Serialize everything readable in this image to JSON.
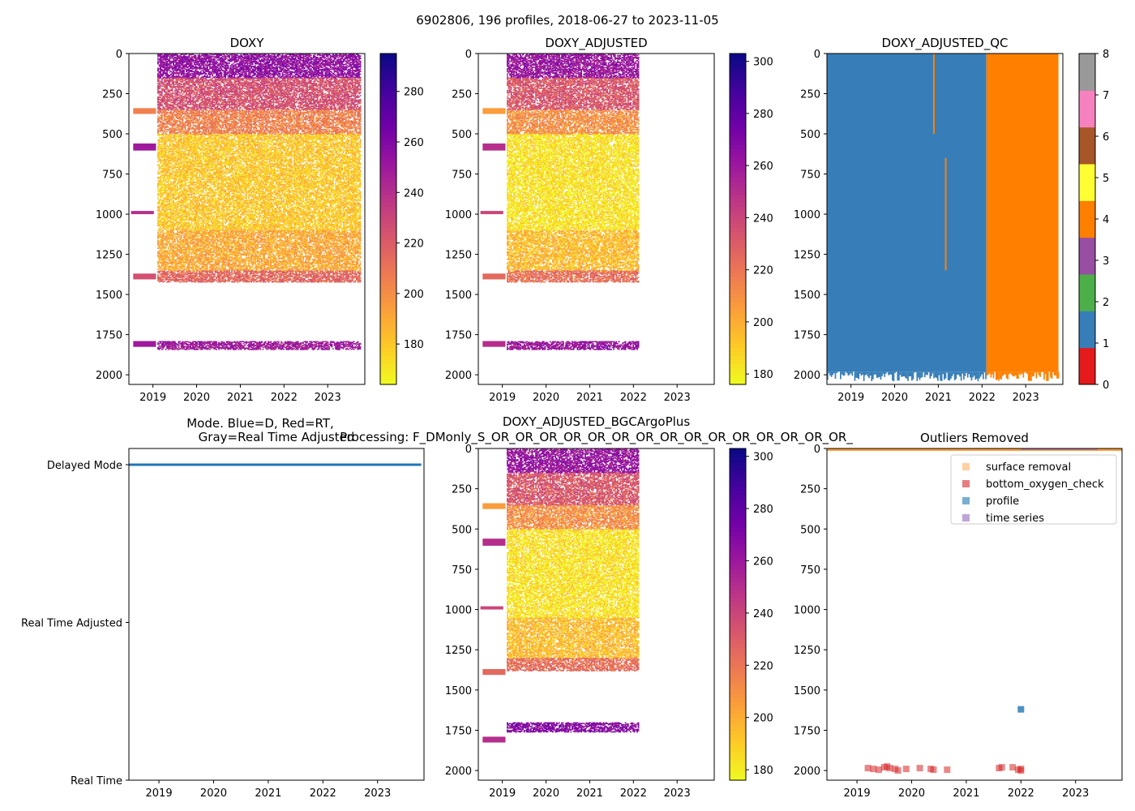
{
  "figure": {
    "suptitle": "6902806, 196 profiles, 2018-06-27 to 2023-11-05"
  },
  "colors": {
    "plasma_low": "#f0f921",
    "plasma_mid": "#e16462",
    "plasma_high": "#0d0887",
    "qc_1": "#377eb8",
    "qc_4": "#ff7f00",
    "mode_line": "#1f77b4",
    "surface_removal": "#ffb266",
    "bottom_oxygen_check": "#d62728",
    "profile": "#1f77b4",
    "time_series": "#9467bd"
  },
  "chart_data": [
    {
      "id": "doxy",
      "type": "heatmap",
      "title": "DOXY",
      "xlim": [
        2018.45,
        2023.85
      ],
      "ylim": [
        2060,
        0
      ],
      "xticks": [
        "2019",
        "2020",
        "2021",
        "2022",
        "2023"
      ],
      "yticks": [
        "0",
        "250",
        "500",
        "750",
        "1000",
        "1250",
        "1500",
        "1750",
        "2000"
      ],
      "colorbar": {
        "min": 164,
        "max": 295,
        "ticks": [
          "180",
          "200",
          "220",
          "240",
          "260",
          "280"
        ],
        "cmap": "plasma_r"
      },
      "data_range": [
        2019.1,
        2023.75
      ],
      "depth_bands": [
        {
          "from": 0,
          "to": 150,
          "value": 255
        },
        {
          "from": 150,
          "to": 350,
          "value": 225
        },
        {
          "from": 350,
          "to": 500,
          "value": 205
        },
        {
          "from": 500,
          "to": 1100,
          "value": 180
        },
        {
          "from": 1100,
          "to": 1350,
          "value": 190
        },
        {
          "from": 1350,
          "to": 1420,
          "value": 215
        },
        {
          "from": 1790,
          "to": 1840,
          "value": 250
        }
      ]
    },
    {
      "id": "doxy_adjusted",
      "type": "heatmap",
      "title": "DOXY_ADJUSTED",
      "xlim": [
        2018.45,
        2023.85
      ],
      "ylim": [
        2060,
        0
      ],
      "xticks": [
        "2019",
        "2020",
        "2021",
        "2022",
        "2023"
      ],
      "yticks": [
        "0",
        "250",
        "500",
        "750",
        "1000",
        "1250",
        "1500",
        "1750",
        "2000"
      ],
      "colorbar": {
        "min": 176,
        "max": 303,
        "ticks": [
          "180",
          "200",
          "220",
          "240",
          "260",
          "280",
          "300"
        ],
        "cmap": "plasma_r"
      },
      "data_range": [
        2019.1,
        2022.1
      ],
      "depth_bands": [
        {
          "from": 0,
          "to": 150,
          "value": 262
        },
        {
          "from": 150,
          "to": 350,
          "value": 232
        },
        {
          "from": 350,
          "to": 500,
          "value": 210
        },
        {
          "from": 500,
          "to": 1100,
          "value": 183
        },
        {
          "from": 1100,
          "to": 1350,
          "value": 195
        },
        {
          "from": 1350,
          "to": 1420,
          "value": 222
        },
        {
          "from": 1790,
          "to": 1840,
          "value": 262
        }
      ]
    },
    {
      "id": "doxy_adjusted_qc",
      "type": "heatmap",
      "title": "DOXY_ADJUSTED_QC",
      "xlim": [
        2018.45,
        2023.85
      ],
      "ylim": [
        2060,
        0
      ],
      "xticks": [
        "2019",
        "2020",
        "2021",
        "2022",
        "2023"
      ],
      "yticks": [
        "0",
        "250",
        "500",
        "750",
        "1000",
        "1250",
        "1500",
        "1750",
        "2000"
      ],
      "colorbar": {
        "min": 0,
        "max": 8,
        "ticks": [
          "0",
          "1",
          "2",
          "3",
          "4",
          "5",
          "6",
          "7",
          "8"
        ],
        "cmap": "Set1",
        "segments": [
          "#e41a1c",
          "#377eb8",
          "#4daf4a",
          "#984ea3",
          "#ff7f00",
          "#ffff33",
          "#a65628",
          "#f781bf",
          "#999999"
        ]
      },
      "blocks": [
        {
          "x0": 2018.45,
          "x1": 2022.1,
          "qc": 1
        },
        {
          "x0": 2022.1,
          "x1": 2023.75,
          "qc": 4
        }
      ],
      "bottom_depth": 1980,
      "qc_flag_marks": [
        {
          "x": 2020.88,
          "from": 0,
          "to": 500
        },
        {
          "x": 2021.15,
          "from": 650,
          "to": 1350
        }
      ]
    },
    {
      "id": "mode",
      "type": "line",
      "title": "Mode. Blue=D, Red=RT,\nGray=Real Time Adjusted",
      "title_lines": [
        "Mode. Blue=D, Red=RT,",
        "Gray=Real Time Adjusted"
      ],
      "xlim": [
        2018.45,
        2023.85
      ],
      "xticks": [
        "2019",
        "2020",
        "2021",
        "2022",
        "2023"
      ],
      "ylabels": [
        "Delayed Mode",
        "Real Time Adjusted",
        "Real Time"
      ],
      "series": [
        {
          "name": "Delayed Mode",
          "x": [
            2018.45,
            2023.8
          ],
          "level": 0
        }
      ]
    },
    {
      "id": "doxy_adjusted_bgcargoplus",
      "type": "heatmap",
      "title": "DOXY_ADJUSTED_BGCArgoPlus",
      "subtitle": "Processing: F_DMonly_S_OR_OR_OR_OR_OR_OR_OR_OR_OR_OR_OR_OR_OR_OR_OR_",
      "xlim": [
        2018.45,
        2023.85
      ],
      "ylim": [
        2060,
        0
      ],
      "xticks": [
        "2019",
        "2020",
        "2021",
        "2022",
        "2023"
      ],
      "yticks": [
        "0",
        "250",
        "500",
        "750",
        "1000",
        "1250",
        "1500",
        "1750",
        "2000"
      ],
      "colorbar": {
        "min": 176,
        "max": 303,
        "ticks": [
          "180",
          "200",
          "220",
          "240",
          "260",
          "280",
          "300"
        ],
        "cmap": "plasma_r"
      },
      "data_range": [
        2019.1,
        2022.1
      ],
      "depth_bands": [
        {
          "from": 0,
          "to": 150,
          "value": 262
        },
        {
          "from": 150,
          "to": 350,
          "value": 232
        },
        {
          "from": 350,
          "to": 500,
          "value": 210
        },
        {
          "from": 500,
          "to": 1050,
          "value": 183
        },
        {
          "from": 1050,
          "to": 1300,
          "value": 195
        },
        {
          "from": 1300,
          "to": 1380,
          "value": 222
        },
        {
          "from": 1700,
          "to": 1760,
          "value": 268
        }
      ]
    },
    {
      "id": "outliers",
      "type": "scatter",
      "title": "Outliers Removed",
      "xlim": [
        2018.45,
        2023.85
      ],
      "ylim": [
        2060,
        0
      ],
      "xticks": [
        "2019",
        "2020",
        "2021",
        "2022",
        "2023"
      ],
      "yticks": [
        "0",
        "250",
        "500",
        "750",
        "1000",
        "1250",
        "1500",
        "1750",
        "2000"
      ],
      "legend": [
        "surface removal",
        "bottom_oxygen_check",
        "profile",
        "time series"
      ],
      "surface_removal_band": {
        "x0": 2018.45,
        "x1": 2023.85,
        "depth": 15
      },
      "time_series_band": {
        "x0": 2022.0,
        "x1": 2023.4,
        "depth": 10
      },
      "bottom_oxygen_check": [
        [
          2019.2,
          1985
        ],
        [
          2019.3,
          1990
        ],
        [
          2019.4,
          1995
        ],
        [
          2019.5,
          1980
        ],
        [
          2019.55,
          1975
        ],
        [
          2019.6,
          1985
        ],
        [
          2019.7,
          1990
        ],
        [
          2019.75,
          2000
        ],
        [
          2019.9,
          1990
        ],
        [
          2020.15,
          1985
        ],
        [
          2020.35,
          1990
        ],
        [
          2020.4,
          1995
        ],
        [
          2020.65,
          1995
        ],
        [
          2021.6,
          1985
        ],
        [
          2021.65,
          1980
        ],
        [
          2021.85,
          1980
        ],
        [
          2021.95,
          1995
        ],
        [
          2022.0,
          2000
        ],
        [
          2022.0,
          1990
        ]
      ],
      "profile": [
        [
          2022.0,
          1620
        ]
      ]
    }
  ]
}
